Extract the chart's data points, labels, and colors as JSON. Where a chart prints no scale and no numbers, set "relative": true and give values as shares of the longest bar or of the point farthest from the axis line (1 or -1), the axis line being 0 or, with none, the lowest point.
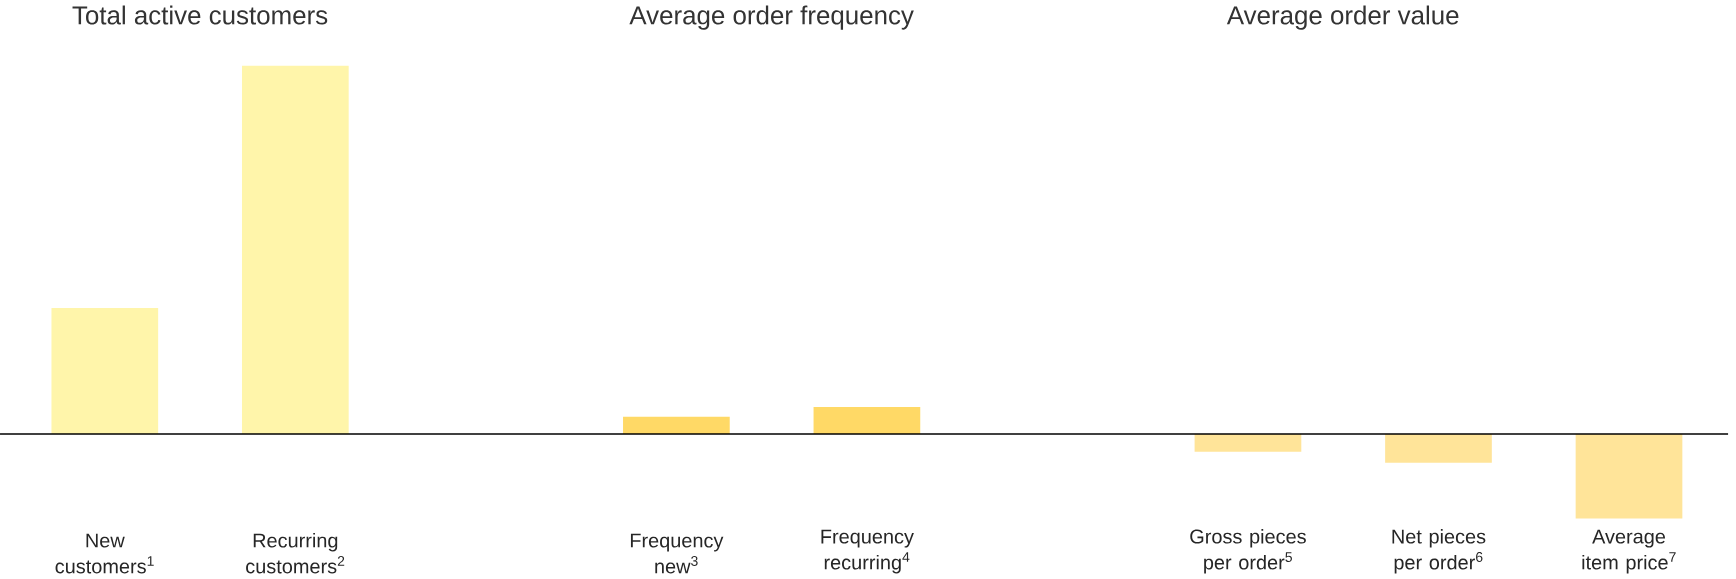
{
  "chart_data": {
    "type": "bar",
    "relative": true,
    "categories": [
      "New customers$^{1}$",
      "Recurring customers$^{2}$",
      null,
      "Frequency new$^{3}$",
      "Frequency recurring$^{4}$",
      null,
      "Gross pieces per order$^{5}$",
      "Net pieces per order$^{6}$",
      "Average item price$^{7}$"
    ],
    "values": [
      0.342,
      1,
      null,
      0.047,
      0.073,
      null,
      -0.048,
      -0.078,
      -0.23
    ],
    "colors": [
      "#fff5aa",
      "#fff5aa",
      null,
      "#ffd966",
      "#ffd966",
      null,
      "#ffe499",
      "#ffe499",
      "#ffe499"
    ],
    "annotations": [
      "Total active customers",
      "Average order frequency",
      "Average order value"
    ]
  }
}
